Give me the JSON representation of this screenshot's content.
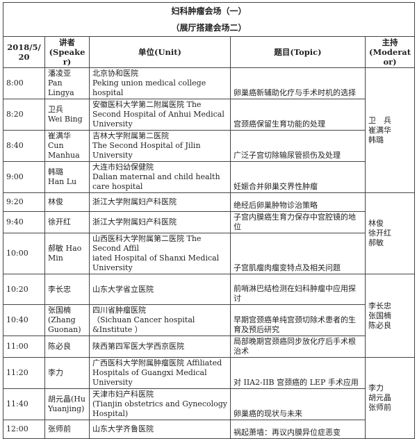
{
  "title": "妇科肿瘤会场（一）",
  "subtitle": "（展厅搭建会场二）",
  "headers": {
    "date": "2018/5/20",
    "speaker": "讲者\n(Speaker)",
    "unit": "单位(Unit)",
    "topic": "题目(Topic)",
    "moderator": "主持\n(Moderator)"
  },
  "rows": [
    {
      "time": "8:00",
      "speaker": "潘凌亚\nPan Lingya",
      "unit": "北京协和医院\nPeking union medical college hospital",
      "topic": "卵巢癌新辅助化疗与手术时机的选择"
    },
    {
      "time": "8:20",
      "speaker": "卫兵\nWei Bing",
      "unit": "安徽医科大学第二附属医院 The Second Hospital of Anhui Medical University",
      "topic": "宫颈癌保留生育功能的处理"
    },
    {
      "time": "8:40",
      "speaker": "崔满华\nCun Manhua",
      "unit": "吉林大学附属第二医院\nThe Second Hospital of Jilin University",
      "topic": "广泛子宫切除输尿管损伤及处理"
    },
    {
      "time": "9:00",
      "speaker": "韩璐\nHan Lu",
      "unit": "大连市妇幼保健院\nDalian maternal and child health care hospital",
      "topic": "妊娠合并卵巢交界性肿瘤"
    },
    {
      "time": "9:20",
      "speaker": "林俊",
      "unit": "浙江大学附属妇产科医院",
      "topic": "绝经后卵巢肿物诊治策略"
    },
    {
      "time": "9:40",
      "speaker": "徐开红",
      "unit": "浙江大学附属妇产科医院",
      "topic": "子宫内膜癌生育力保存中宫腔镜的地位"
    },
    {
      "time": "10:00",
      "speaker": "郝敏 Hao Min",
      "unit": "山西医科大学附属第二医院 The Second Affil\niated Hospital of Shanxi Medical University",
      "topic": "子宫肌瘤肉瘤变特点及相关问题"
    },
    {
      "time": "10:20",
      "speaker": "李长忠",
      "unit": "山东大学省立医院",
      "topic": "前哨淋巴结检测在妇科肿瘤中应用探讨"
    },
    {
      "time": "10:40",
      "speaker": "张国楠\n(Zhang Guonan)",
      "unit": "四川省肿瘤医院\n（Sichuan Cancer hospital &Institute ）",
      "topic": "早期宫颈癌单纯宫颈切除术患者的生育及预后研究"
    },
    {
      "time": "11:00",
      "speaker": "陈必良",
      "unit": "陕西第四军医大学西京医院",
      "topic": "局部晚期宫颈癌同步放化疗后手术根治术"
    },
    {
      "time": "11:20",
      "speaker": "李力",
      "unit": "广西医科大学附属肿瘤医院 Affiliated Hospitals of Guangxi Medical University",
      "topic": "对 IIA2-IIB 宫颈癌的 LEP 手术应用"
    },
    {
      "time": "11:40",
      "speaker": "胡元晶(Hu Yuanjing)",
      "unit": "天津市妇产科医院\n(Tianjin obstetrics and Gynecology Hospital)",
      "topic": "卵巢癌的现状与未来"
    },
    {
      "time": "12:00",
      "speaker": "张师前",
      "unit": "山东大学齐鲁医院",
      "topic": "祸起萧墙：再议内膜异位症恶变"
    }
  ],
  "moderators": [
    {
      "names": "卫　兵\n崔满华\n韩璐",
      "span": 4
    },
    {
      "names": "林俊\n徐开红\n郝敏",
      "span": 3
    },
    {
      "names": "李长忠\n张国楠\n陈必良",
      "span": 3
    },
    {
      "names": "李力\n胡元晶\n张师前",
      "span": 3
    }
  ]
}
